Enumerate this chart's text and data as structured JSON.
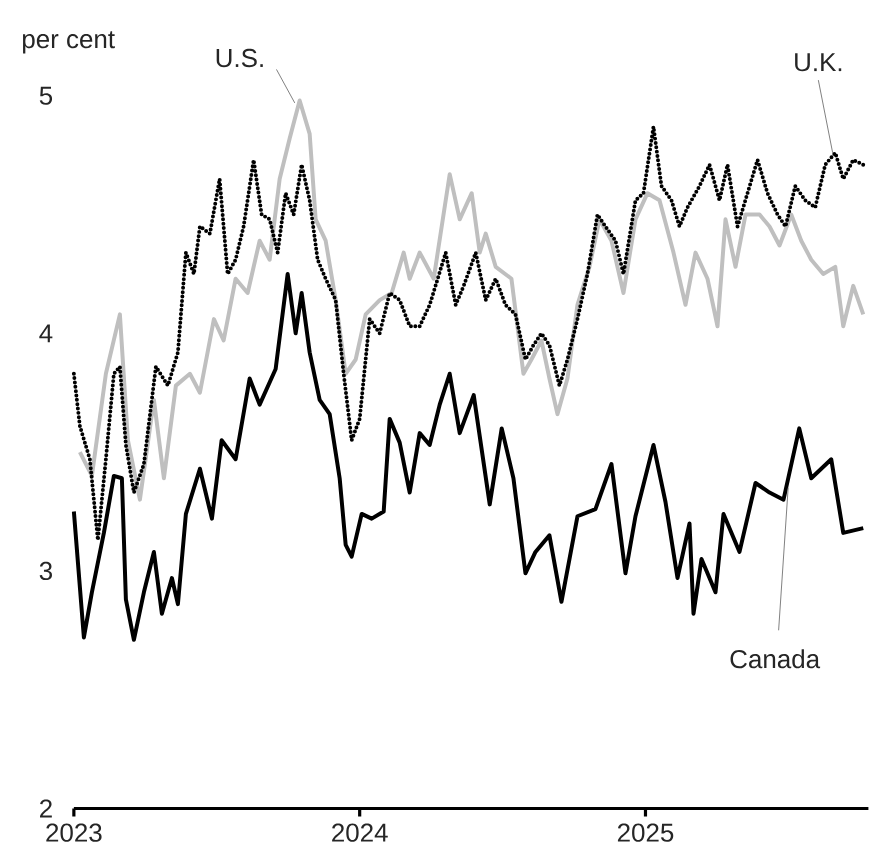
{
  "chart_data": {
    "type": "line",
    "ylabel": "per cent",
    "xlim": [
      2023,
      2025.78
    ],
    "ylim": [
      2,
      5
    ],
    "xticks": [
      2023,
      2024,
      2025
    ],
    "yticks": [
      2,
      3,
      4,
      5
    ],
    "series": [
      {
        "name": "U.S.",
        "color": "#bfbfbf",
        "line_style": "solid",
        "x": [
          2023.021,
          2023.063,
          2023.112,
          2023.161,
          2023.189,
          2023.231,
          2023.28,
          2023.315,
          2023.357,
          2023.406,
          2023.441,
          2023.49,
          2023.524,
          2023.566,
          2023.608,
          2023.65,
          2023.685,
          2023.72,
          2023.755,
          2023.79,
          2023.825,
          2023.846,
          2023.881,
          2023.916,
          2023.951,
          2023.986,
          2024.021,
          2024.07,
          2024.112,
          2024.154,
          2024.175,
          2024.21,
          2024.259,
          2024.315,
          2024.35,
          2024.392,
          2024.42,
          2024.441,
          2024.476,
          2024.531,
          2024.573,
          2024.601,
          2024.636,
          2024.664,
          2024.692,
          2024.727,
          2024.762,
          2024.804,
          2024.839,
          2024.881,
          2024.923,
          2024.965,
          2025.007,
          2025.049,
          2025.098,
          2025.14,
          2025.175,
          2025.217,
          2025.252,
          2025.28,
          2025.315,
          2025.35,
          2025.399,
          2025.434,
          2025.469,
          2025.51,
          2025.545,
          2025.58,
          2025.622,
          2025.664,
          2025.692,
          2025.727,
          2025.762
        ],
        "values": [
          3.5,
          3.4,
          3.83,
          4.08,
          3.55,
          3.3,
          3.72,
          3.39,
          3.78,
          3.83,
          3.75,
          4.06,
          3.97,
          4.23,
          4.17,
          4.39,
          4.31,
          4.65,
          4.82,
          4.98,
          4.84,
          4.48,
          4.39,
          4.14,
          3.83,
          3.89,
          4.08,
          4.14,
          4.17,
          4.34,
          4.23,
          4.34,
          4.23,
          4.67,
          4.48,
          4.59,
          4.34,
          4.42,
          4.28,
          4.23,
          3.83,
          3.89,
          3.97,
          3.81,
          3.66,
          3.81,
          4.12,
          4.28,
          4.48,
          4.39,
          4.17,
          4.48,
          4.59,
          4.56,
          4.34,
          4.12,
          4.34,
          4.23,
          4.03,
          4.48,
          4.28,
          4.5,
          4.5,
          4.45,
          4.37,
          4.5,
          4.39,
          4.31,
          4.25,
          4.28,
          4.03,
          4.2,
          4.08
        ]
      },
      {
        "name": "U.K.",
        "color": "#000000",
        "line_style": "dotted",
        "x": [
          2023.0,
          2023.021,
          2023.056,
          2023.084,
          2023.112,
          2023.14,
          2023.161,
          2023.182,
          2023.21,
          2023.245,
          2023.287,
          2023.329,
          2023.364,
          2023.392,
          2023.42,
          2023.441,
          2023.476,
          2023.51,
          2023.538,
          2023.566,
          2023.594,
          2023.629,
          2023.657,
          2023.685,
          2023.713,
          2023.741,
          2023.769,
          2023.797,
          2023.825,
          2023.853,
          2023.881,
          2023.916,
          2023.944,
          2023.972,
          2024.0,
          2024.035,
          2024.07,
          2024.105,
          2024.14,
          2024.175,
          2024.21,
          2024.245,
          2024.273,
          2024.301,
          2024.336,
          2024.364,
          2024.406,
          2024.441,
          2024.476,
          2024.51,
          2024.545,
          2024.58,
          2024.608,
          2024.636,
          2024.664,
          2024.699,
          2024.727,
          2024.762,
          2024.797,
          2024.832,
          2024.86,
          2024.895,
          2024.923,
          2024.965,
          2024.993,
          2025.028,
          2025.056,
          2025.091,
          2025.119,
          2025.147,
          2025.189,
          2025.224,
          2025.259,
          2025.287,
          2025.322,
          2025.357,
          2025.392,
          2025.427,
          2025.462,
          2025.49,
          2025.524,
          2025.559,
          2025.594,
          2025.629,
          2025.664,
          2025.692,
          2025.727,
          2025.762
        ],
        "values": [
          3.83,
          3.61,
          3.47,
          3.13,
          3.47,
          3.83,
          3.86,
          3.53,
          3.33,
          3.45,
          3.86,
          3.78,
          3.92,
          4.34,
          4.25,
          4.45,
          4.42,
          4.65,
          4.25,
          4.31,
          4.45,
          4.73,
          4.5,
          4.48,
          4.34,
          4.59,
          4.5,
          4.71,
          4.56,
          4.31,
          4.23,
          4.14,
          3.83,
          3.55,
          3.64,
          4.06,
          4.0,
          4.17,
          4.14,
          4.03,
          4.03,
          4.12,
          4.23,
          4.34,
          4.12,
          4.2,
          4.34,
          4.14,
          4.23,
          4.12,
          4.08,
          3.89,
          3.95,
          4.0,
          3.95,
          3.78,
          3.89,
          4.06,
          4.25,
          4.5,
          4.45,
          4.39,
          4.25,
          4.56,
          4.59,
          4.87,
          4.62,
          4.56,
          4.45,
          4.53,
          4.62,
          4.71,
          4.56,
          4.71,
          4.45,
          4.59,
          4.73,
          4.59,
          4.5,
          4.45,
          4.62,
          4.56,
          4.53,
          4.71,
          4.76,
          4.65,
          4.73,
          4.71
        ]
      },
      {
        "name": "Canada",
        "color": "#000000",
        "line_style": "solid",
        "x": [
          2023.0,
          2023.035,
          2023.063,
          2023.105,
          2023.14,
          2023.168,
          2023.182,
          2023.21,
          2023.245,
          2023.28,
          2023.308,
          2023.343,
          2023.364,
          2023.392,
          2023.441,
          2023.483,
          2023.517,
          2023.566,
          2023.615,
          2023.65,
          2023.706,
          2023.748,
          2023.776,
          2023.797,
          2023.825,
          2023.86,
          2023.895,
          2023.93,
          2023.951,
          2023.972,
          2024.007,
          2024.042,
          2024.084,
          2024.105,
          2024.14,
          2024.175,
          2024.21,
          2024.245,
          2024.28,
          2024.315,
          2024.35,
          2024.399,
          2024.455,
          2024.497,
          2024.538,
          2024.58,
          2024.615,
          2024.664,
          2024.706,
          2024.762,
          2024.825,
          2024.881,
          2024.93,
          2024.965,
          2025.028,
          2025.07,
          2025.112,
          2025.154,
          2025.168,
          2025.196,
          2025.245,
          2025.273,
          2025.329,
          2025.385,
          2025.434,
          2025.483,
          2025.538,
          2025.58,
          2025.65,
          2025.692,
          2025.762
        ],
        "values": [
          3.25,
          2.72,
          2.91,
          3.16,
          3.4,
          3.39,
          2.88,
          2.71,
          2.91,
          3.08,
          2.82,
          2.97,
          2.86,
          3.24,
          3.43,
          3.22,
          3.55,
          3.47,
          3.81,
          3.7,
          3.85,
          4.25,
          4.0,
          4.17,
          3.92,
          3.72,
          3.66,
          3.39,
          3.11,
          3.06,
          3.24,
          3.22,
          3.25,
          3.64,
          3.54,
          3.33,
          3.58,
          3.53,
          3.7,
          3.83,
          3.58,
          3.74,
          3.28,
          3.6,
          3.39,
          2.99,
          3.08,
          3.15,
          2.87,
          3.23,
          3.26,
          3.45,
          2.99,
          3.23,
          3.53,
          3.29,
          2.97,
          3.2,
          2.82,
          3.05,
          2.91,
          3.24,
          3.08,
          3.37,
          3.33,
          3.3,
          3.6,
          3.39,
          3.47,
          3.16,
          3.18
        ]
      }
    ]
  }
}
